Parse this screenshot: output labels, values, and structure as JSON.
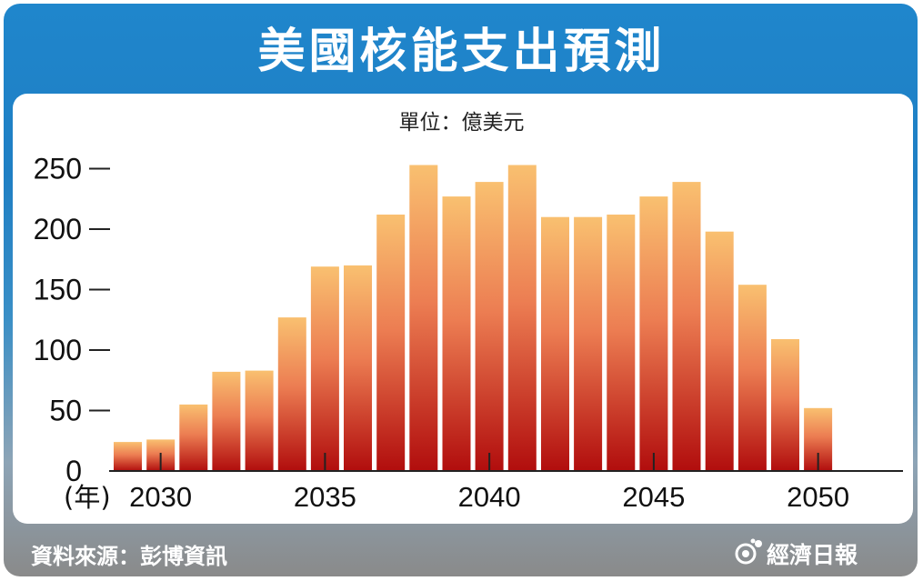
{
  "title": "美國核能支出預測",
  "unit": "單位：億美元",
  "source": "資料來源：彭博資訊",
  "brand": "經濟日報",
  "colors": {
    "bar_top": "#f9c070",
    "bar_mid": "#ec7d52",
    "bar_bottom": "#b10d0d",
    "frame": "#1f7fc4"
  },
  "chart_data": {
    "type": "bar",
    "title": "美國核能支出預測",
    "unit": "億美元",
    "x_label": "(年)",
    "categories": [
      "2029",
      "2030",
      "2031",
      "2032",
      "2033",
      "2034",
      "2035",
      "2036",
      "2037",
      "2038",
      "2039",
      "2040",
      "2041",
      "2042",
      "2043",
      "2044",
      "2045",
      "2046",
      "2047",
      "2048",
      "2049",
      "2050"
    ],
    "x_tick_labels": [
      "2030",
      "2035",
      "2040",
      "2045",
      "2050"
    ],
    "values": [
      24,
      26,
      55,
      82,
      83,
      127,
      169,
      170,
      212,
      253,
      227,
      239,
      253,
      210,
      210,
      212,
      227,
      239,
      198,
      154,
      109,
      52
    ],
    "y_ticks": [
      0,
      50,
      100,
      150,
      200,
      250
    ],
    "ylim": [
      0,
      260
    ]
  }
}
